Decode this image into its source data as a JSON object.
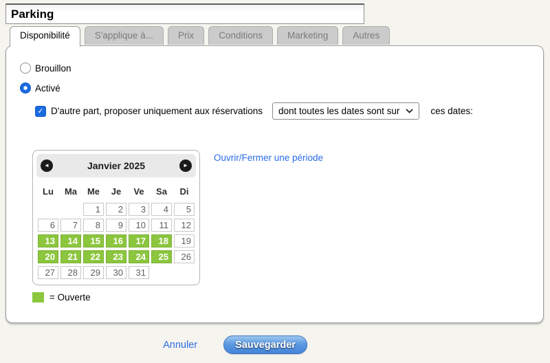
{
  "window": {
    "title_input_value": "Parking"
  },
  "tabs": [
    {
      "label": "Disponibilité",
      "active": true
    },
    {
      "label": "S'applique à...",
      "active": false
    },
    {
      "label": "Prix",
      "active": false
    },
    {
      "label": "Conditions",
      "active": false
    },
    {
      "label": "Marketing",
      "active": false
    },
    {
      "label": "Autres",
      "active": false
    }
  ],
  "status_radios": [
    {
      "label": "Brouillon",
      "selected": false
    },
    {
      "label": "Activé",
      "selected": true
    }
  ],
  "restriction": {
    "checkbox_checked": true,
    "checkbox_label": "D'autre part, proposer uniquement aux réservations",
    "select_selected_value": "dont toutes les dates sont sur",
    "after_select_text": "ces dates:"
  },
  "period_link_label": "Ouvrir/Fermer une période",
  "calendar": {
    "month_title": "Janvier 2025",
    "prev_icon": "chevron-left-circle-icon",
    "next_icon": "chevron-right-circle-icon",
    "weekdays": [
      "Lu",
      "Ma",
      "Me",
      "Je",
      "Ve",
      "Sa",
      "Di"
    ],
    "weeks": [
      [
        null,
        null,
        1,
        2,
        3,
        4,
        5
      ],
      [
        6,
        7,
        8,
        9,
        10,
        11,
        12
      ],
      [
        13,
        14,
        15,
        16,
        17,
        18,
        19
      ],
      [
        20,
        21,
        22,
        23,
        24,
        25,
        26
      ],
      [
        27,
        28,
        29,
        30,
        31,
        null,
        null
      ]
    ],
    "open_days": [
      13,
      14,
      15,
      16,
      17,
      18,
      20,
      21,
      22,
      23,
      24,
      25
    ],
    "open_color": "#8cc63f",
    "legend_label": "= Ouverte"
  },
  "footer": {
    "cancel_label": "Annuler",
    "save_label": "Sauvegarder",
    "save_button_color": "#4384da"
  }
}
